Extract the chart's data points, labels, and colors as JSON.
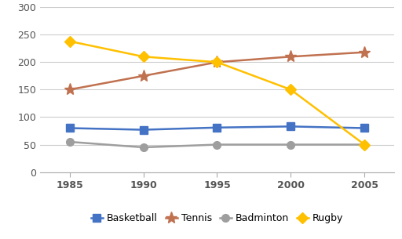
{
  "years": [
    1985,
    1990,
    1995,
    2000,
    2005
  ],
  "basketball": [
    80,
    77,
    81,
    83,
    80
  ],
  "tennis": [
    150,
    175,
    200,
    210,
    218
  ],
  "badminton": [
    55,
    45,
    50,
    50,
    50
  ],
  "rugby": [
    238,
    210,
    200,
    150,
    50
  ],
  "colors": {
    "basketball": "#4472C4",
    "tennis": "#C0714F",
    "badminton": "#9E9E9E",
    "rugby": "#FFC000"
  },
  "markers": {
    "basketball": "s",
    "tennis": "*",
    "badminton": "o",
    "rugby": "D"
  },
  "marker_sizes": {
    "basketball": 7,
    "tennis": 11,
    "badminton": 7,
    "rugby": 7
  },
  "linewidths": {
    "basketball": 1.8,
    "tennis": 1.8,
    "badminton": 1.8,
    "rugby": 1.8
  },
  "ylim": [
    0,
    300
  ],
  "yticks": [
    0,
    50,
    100,
    150,
    200,
    250,
    300
  ],
  "xlim": [
    1983,
    2007
  ],
  "legend_labels": [
    "Basketball",
    "Tennis",
    "Badminton",
    "Rugby"
  ],
  "background_color": "#ffffff",
  "grid_color": "#cccccc",
  "tick_color": "#555555",
  "spine_color": "#aaaaaa"
}
